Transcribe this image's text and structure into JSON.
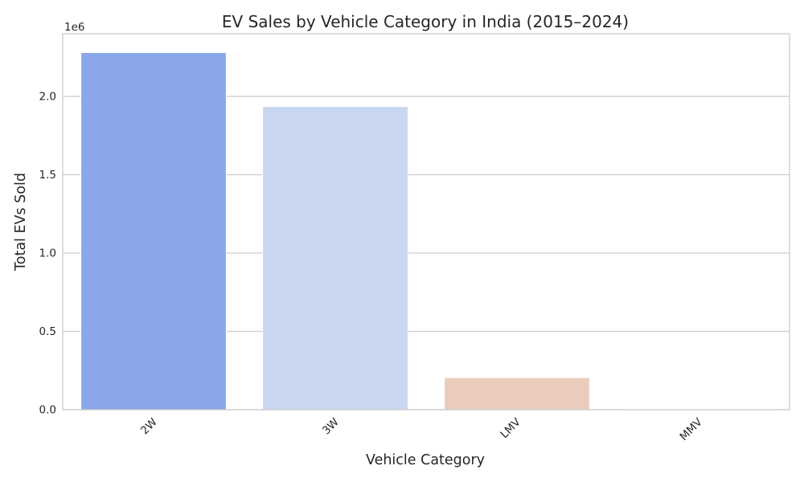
{
  "chart_data": {
    "type": "bar",
    "title": "EV Sales by Vehicle Category in India (2015–2024)",
    "xlabel": "Vehicle Category",
    "ylabel": "Total EVs Sold",
    "y_offset_label": "1e6",
    "categories": [
      "2W",
      "3W",
      "LMV",
      "MMV"
    ],
    "values": [
      2280000,
      1935000,
      205000,
      5000
    ],
    "colors": [
      "#89a7ea",
      "#c8d6f0",
      "#eaccbd",
      "#e8b8a0"
    ],
    "ylim": [
      0,
      2400000
    ],
    "yticks": [
      0,
      500000,
      1000000,
      1500000,
      2000000
    ],
    "ytick_labels": [
      "0.0",
      "0.5",
      "1.0",
      "1.5",
      "2.0"
    ],
    "grid": "horizontal",
    "legend": "none"
  }
}
